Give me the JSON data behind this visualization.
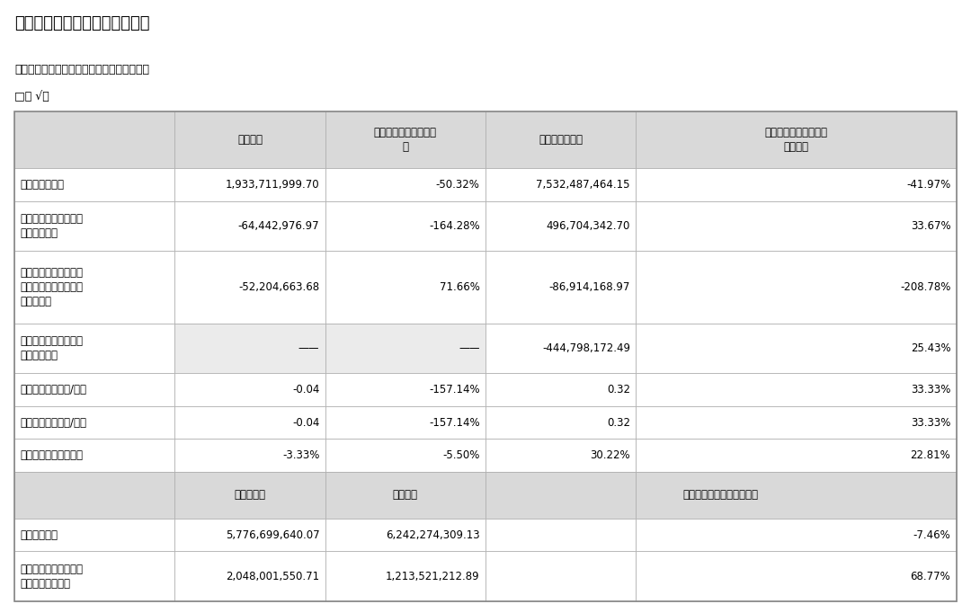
{
  "title": "（一）主要会计数据和财务指标",
  "subtitle1": "公司是否需追溯调整或重述以前年度会计数据",
  "subtitle2": "□是 √否",
  "bg_color": "#ffffff",
  "header_bg": "#d9d9d9",
  "cell_bg_white": "#ffffff",
  "cell_bg_gray": "#ebebeb",
  "border_color": "#aaaaaa",
  "text_color": "#000000",
  "header1_cols": [
    "",
    "本报告期",
    "本报告期比上年同期增\n减",
    "年初至报告期末",
    "年初至报告期末比上年\n同期增减"
  ],
  "data_rows": [
    [
      "营业收入（元）",
      "1,933,711,999.70",
      "-50.32%",
      "7,532,487,464.15",
      "-41.97%"
    ],
    [
      "归属于上市公司股东的\n净利润（元）",
      "-64,442,976.97",
      "-164.28%",
      "496,704,342.70",
      "33.67%"
    ],
    [
      "归属于上市公司股东的\n扣除非经常性损益的净\n利润（元）",
      "-52,204,663.68",
      "71.66%",
      "-86,914,168.97",
      "-208.78%"
    ],
    [
      "经营活动产生的现金流\n量净额（元）",
      "——",
      "——",
      "-444,798,172.49",
      "25.43%"
    ],
    [
      "基本每股收益（元/股）",
      "-0.04",
      "-157.14%",
      "0.32",
      "33.33%"
    ],
    [
      "稀释每股收益（元/股）",
      "-0.04",
      "-157.14%",
      "0.32",
      "33.33%"
    ],
    [
      "加权平均净资产收益率",
      "-3.33%",
      "-5.50%",
      "30.22%",
      "22.81%"
    ]
  ],
  "header2_cols": [
    "",
    "本报告期末",
    "上年度末",
    "本报告期末比上年度末增减",
    ""
  ],
  "data_rows2": [
    [
      "总资产（元）",
      "5,776,699,640.07",
      "6,242,274,309.13",
      "",
      "-7.46%"
    ],
    [
      "归属于上市公司股东的\n所有者权益（元）",
      "2,048,001,550.71",
      "1,213,521,212.89",
      "",
      "68.77%"
    ]
  ]
}
